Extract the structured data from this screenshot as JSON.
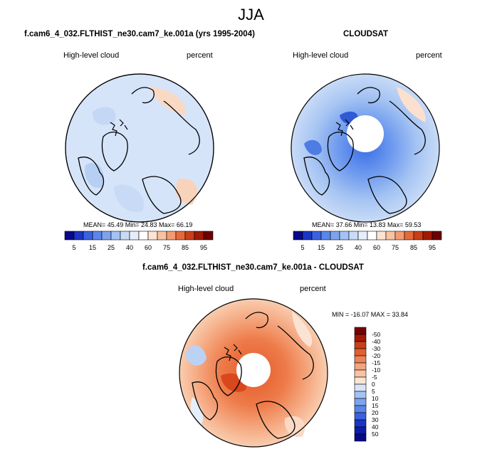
{
  "page": {
    "season": "JJA",
    "model_run": "f.cam6_4_032.FLTHIST_ne30.cam7_ke.001a (yrs 1995-2004)",
    "obs_name": "CLOUDSAT",
    "diff_title": "f.cam6_4_032.FLTHIST_ne30.cam7_ke.001a - CLOUDSAT",
    "variable": "High-level cloud",
    "units": "percent"
  },
  "chart_data": [
    {
      "type": "heatmap",
      "projection": "north-polar-stereographic",
      "title": "f.cam6_4_032.FLTHIST_ne30.cam7_ke.001a (yrs 1995-2004)",
      "left_label": "High-level cloud",
      "right_label": "percent",
      "stats_text": "MEAN=  45.49  Min=  24.83  Max=  66.19",
      "stats": {
        "mean": 45.49,
        "min": 24.83,
        "max": 66.19
      },
      "colorbar": {
        "levels": [
          5,
          10,
          15,
          20,
          25,
          30,
          40,
          50,
          60,
          70,
          75,
          80,
          85,
          90,
          95
        ],
        "tick_labels": [
          "5",
          "15",
          "25",
          "40",
          "60",
          "75",
          "85",
          "95"
        ],
        "colors": [
          "#08088a",
          "#1b35c4",
          "#3a62e0",
          "#5a85ea",
          "#7ea3ee",
          "#a4c2f4",
          "#c8dbf7",
          "#e6eefb",
          "#ffffff",
          "#fde4d2",
          "#f9c3a3",
          "#f39c73",
          "#e46a3c",
          "#c83f18",
          "#a11a05",
          "#6e0000"
        ]
      }
    },
    {
      "type": "heatmap",
      "projection": "north-polar-stereographic",
      "title": "CLOUDSAT",
      "left_label": "High-level cloud",
      "right_label": "percent",
      "stats_text": "MEAN=  37.66  Min=  13.83  Max=  59.53",
      "stats": {
        "mean": 37.66,
        "min": 13.83,
        "max": 59.53
      },
      "colorbar": {
        "levels": [
          5,
          10,
          15,
          20,
          25,
          30,
          40,
          50,
          60,
          70,
          75,
          80,
          85,
          90,
          95
        ],
        "tick_labels": [
          "5",
          "15",
          "25",
          "40",
          "60",
          "75",
          "85",
          "95"
        ],
        "colors": [
          "#08088a",
          "#1b35c4",
          "#3a62e0",
          "#5a85ea",
          "#7ea3ee",
          "#a4c2f4",
          "#c8dbf7",
          "#e6eefb",
          "#ffffff",
          "#fde4d2",
          "#f9c3a3",
          "#f39c73",
          "#e46a3c",
          "#c83f18",
          "#a11a05",
          "#6e0000"
        ]
      }
    },
    {
      "type": "heatmap",
      "projection": "north-polar-stereographic",
      "title": "f.cam6_4_032.FLTHIST_ne30.cam7_ke.001a - CLOUDSAT",
      "left_label": "High-level cloud",
      "right_label": "percent",
      "stats_text": "MIN = -16.07 MAX = 33.84",
      "stats": {
        "min": -16.07,
        "max": 33.84
      },
      "colorbar": {
        "orientation": "vertical",
        "tick_labels": [
          "-50",
          "-40",
          "-30",
          "-20",
          "-15",
          "-10",
          "-5",
          "0",
          "5",
          "10",
          "15",
          "20",
          "30",
          "40",
          "50"
        ],
        "colors": [
          "#08088a",
          "#0d1ca8",
          "#1b35c4",
          "#3a62e0",
          "#5a85ea",
          "#7ea3ee",
          "#a4c2f4",
          "#d8e5f9",
          "#fde4d2",
          "#f9c3a3",
          "#f3a57e",
          "#ec8358",
          "#e0602f",
          "#c83f18",
          "#a11a05",
          "#7a0000"
        ]
      }
    }
  ]
}
